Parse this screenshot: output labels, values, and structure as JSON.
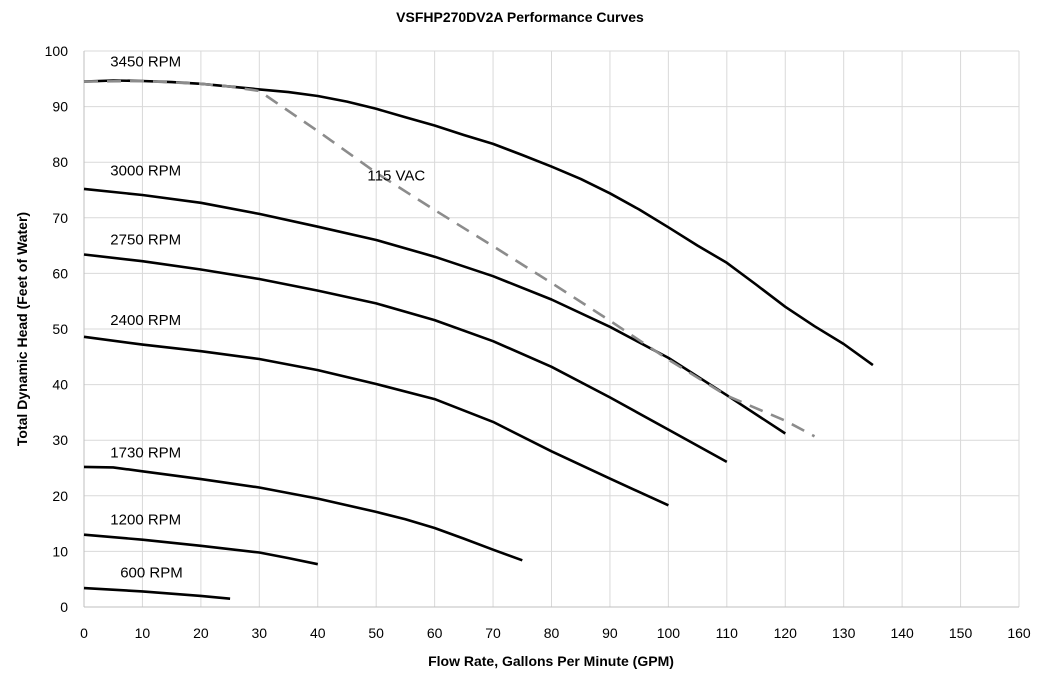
{
  "chart_data": {
    "type": "line",
    "title": "VSFHP270DV2A Performance Curves",
    "xlabel": "Flow Rate, Gallons Per Minute (GPM)",
    "ylabel": "Total Dynamic Head (Feet of Water)",
    "xlim": [
      0,
      160
    ],
    "ylim": [
      0,
      100
    ],
    "xticks": [
      0,
      10,
      20,
      30,
      40,
      50,
      60,
      70,
      80,
      90,
      100,
      110,
      120,
      130,
      140,
      150,
      160
    ],
    "yticks": [
      0,
      10,
      20,
      30,
      40,
      50,
      60,
      70,
      80,
      90,
      100
    ],
    "grid": true,
    "series": [
      {
        "name": "3450 RPM",
        "style": "solid",
        "x": [
          0,
          5,
          10,
          15,
          20,
          25,
          30,
          35,
          40,
          45,
          50,
          55,
          60,
          65,
          70,
          75,
          80,
          85,
          90,
          95,
          100,
          105,
          110,
          115,
          120,
          125,
          130,
          135
        ],
        "y": [
          94.5,
          94.7,
          94.6,
          94.4,
          94.1,
          93.6,
          93.1,
          92.6,
          91.9,
          90.9,
          89.6,
          88.1,
          86.6,
          84.9,
          83.3,
          81.3,
          79.2,
          77.0,
          74.4,
          71.5,
          68.3,
          65.0,
          61.9,
          58.0,
          54.0,
          50.5,
          47.3,
          43.5
        ]
      },
      {
        "name": "3000 RPM",
        "style": "solid",
        "x": [
          0,
          10,
          20,
          30,
          40,
          50,
          60,
          70,
          80,
          90,
          100,
          110,
          120
        ],
        "y": [
          75.2,
          74.1,
          72.7,
          70.7,
          68.4,
          66.0,
          63.0,
          59.5,
          55.3,
          50.4,
          44.8,
          38.1,
          31.2
        ]
      },
      {
        "name": "2750 RPM",
        "style": "solid",
        "x": [
          0,
          10,
          20,
          30,
          40,
          50,
          60,
          70,
          80,
          90,
          100,
          110
        ],
        "y": [
          63.4,
          62.2,
          60.7,
          59.0,
          56.9,
          54.6,
          51.6,
          47.8,
          43.2,
          37.7,
          31.9,
          26.1
        ]
      },
      {
        "name": "2400 RPM",
        "style": "solid",
        "x": [
          0,
          10,
          20,
          30,
          40,
          50,
          60,
          70,
          80,
          90,
          100
        ],
        "y": [
          48.6,
          47.2,
          46.0,
          44.6,
          42.6,
          40.1,
          37.4,
          33.3,
          28.0,
          23.1,
          18.3
        ]
      },
      {
        "name": "1730 RPM",
        "style": "solid",
        "x": [
          0,
          5,
          10,
          20,
          30,
          40,
          50,
          55,
          60,
          65,
          70,
          75
        ],
        "y": [
          25.2,
          25.1,
          24.4,
          23.0,
          21.5,
          19.5,
          17.1,
          15.8,
          14.2,
          12.3,
          10.3,
          8.4
        ]
      },
      {
        "name": "1200 RPM",
        "style": "solid",
        "x": [
          0,
          10,
          20,
          30,
          35,
          40
        ],
        "y": [
          13.0,
          12.1,
          11.0,
          9.8,
          8.8,
          7.7
        ]
      },
      {
        "name": "600 RPM",
        "style": "solid",
        "x": [
          0,
          10,
          20,
          25
        ],
        "y": [
          3.4,
          2.8,
          2.0,
          1.5
        ]
      },
      {
        "name": "115 VAC",
        "style": "dashed",
        "x": [
          0,
          10,
          20,
          25,
          30,
          40,
          50,
          60,
          70,
          80,
          90,
          100,
          110,
          120,
          125
        ],
        "y": [
          94.5,
          94.6,
          94.1,
          93.6,
          92.8,
          85.6,
          78.1,
          71.4,
          64.9,
          58.3,
          51.5,
          44.5,
          38.0,
          33.5,
          30.7
        ]
      }
    ],
    "annotations": [
      {
        "text": "3450 RPM",
        "x": 4.5,
        "y": 97.2
      },
      {
        "text": "3000 RPM",
        "x": 4.5,
        "y": 77.6
      },
      {
        "text": "2750 RPM",
        "x": 4.5,
        "y": 65.2
      },
      {
        "text": "2400 RPM",
        "x": 4.5,
        "y": 50.7
      },
      {
        "text": "1730 RPM",
        "x": 4.5,
        "y": 26.9
      },
      {
        "text": "1200 RPM",
        "x": 4.5,
        "y": 14.8
      },
      {
        "text": "600 RPM",
        "x": 6.2,
        "y": 5.3
      },
      {
        "text": "115 VAC",
        "x": 48.5,
        "y": 76.7
      }
    ]
  }
}
